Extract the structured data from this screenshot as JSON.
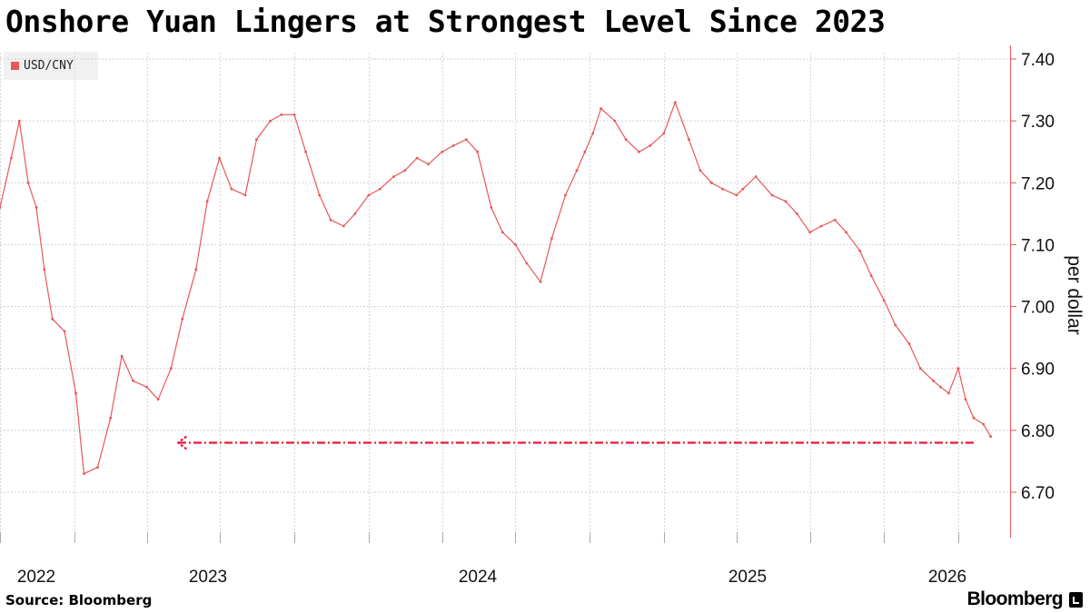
{
  "chart_data": {
    "type": "line",
    "title": "Onshore Yuan Lingers at Strongest Level Since 2023",
    "ylabel": "per dollar",
    "y_ticks": [
      "7.40",
      "7.30",
      "7.20",
      "7.10",
      "7.00",
      "6.90",
      "6.80",
      "6.70"
    ],
    "ylim": [
      6.62,
      7.42
    ],
    "x_tick_labels": [
      "2022",
      "2023",
      "2024",
      "2025",
      "2026"
    ],
    "legend_position": "top-left",
    "grid": true,
    "series": [
      {
        "name": "USD/CNY",
        "color": "#e8575a",
        "x": [
          "2022-10-01",
          "2022-10-15",
          "2022-10-25",
          "2022-11-05",
          "2022-11-15",
          "2022-11-25",
          "2022-12-05",
          "2022-12-20",
          "2023-01-03",
          "2023-01-13",
          "2023-01-30",
          "2023-02-15",
          "2023-03-01",
          "2023-03-15",
          "2023-04-01",
          "2023-04-15",
          "2023-05-01",
          "2023-05-15",
          "2023-06-01",
          "2023-06-15",
          "2023-06-30",
          "2023-07-15",
          "2023-08-01",
          "2023-08-15",
          "2023-09-01",
          "2023-09-15",
          "2023-10-01",
          "2023-10-15",
          "2023-11-01",
          "2023-11-15",
          "2023-12-01",
          "2023-12-15",
          "2024-01-01",
          "2024-01-15",
          "2024-02-01",
          "2024-02-15",
          "2024-03-01",
          "2024-03-15",
          "2024-04-01",
          "2024-04-15",
          "2024-05-01",
          "2024-05-15",
          "2024-06-01",
          "2024-06-15",
          "2024-07-01",
          "2024-07-15",
          "2024-08-01",
          "2024-08-15",
          "2024-09-01",
          "2024-09-15",
          "2024-09-25",
          "2024-10-05",
          "2024-10-15",
          "2024-11-01",
          "2024-11-15",
          "2024-12-01",
          "2024-12-15",
          "2025-01-01",
          "2025-01-15",
          "2025-02-01",
          "2025-02-15",
          "2025-03-01",
          "2025-03-15",
          "2025-04-01",
          "2025-04-09",
          "2025-04-25",
          "2025-05-15",
          "2025-06-01",
          "2025-06-15",
          "2025-07-01",
          "2025-07-15",
          "2025-08-01",
          "2025-08-15",
          "2025-09-01",
          "2025-09-15",
          "2025-10-01",
          "2025-10-15",
          "2025-11-01",
          "2025-11-15",
          "2025-12-01",
          "2025-12-10",
          "2025-12-20",
          "2026-01-01",
          "2026-01-10",
          "2026-01-20",
          "2026-02-01",
          "2026-02-10"
        ],
        "values": [
          7.16,
          7.24,
          7.3,
          7.2,
          7.16,
          7.06,
          6.98,
          6.96,
          6.86,
          6.73,
          6.74,
          6.82,
          6.92,
          6.88,
          6.87,
          6.85,
          6.9,
          6.98,
          7.06,
          7.17,
          7.24,
          7.19,
          7.18,
          7.27,
          7.3,
          7.31,
          7.31,
          7.25,
          7.18,
          7.14,
          7.13,
          7.15,
          7.18,
          7.19,
          7.21,
          7.22,
          7.24,
          7.23,
          7.25,
          7.26,
          7.27,
          7.25,
          7.16,
          7.12,
          7.1,
          7.07,
          7.04,
          7.11,
          7.18,
          7.22,
          7.25,
          7.28,
          7.32,
          7.3,
          7.27,
          7.25,
          7.26,
          7.28,
          7.33,
          7.27,
          7.22,
          7.2,
          7.19,
          7.18,
          7.19,
          7.21,
          7.18,
          7.17,
          7.15,
          7.12,
          7.13,
          7.14,
          7.12,
          7.09,
          7.05,
          7.01,
          6.97,
          6.94,
          6.9,
          6.88,
          6.87,
          6.86,
          6.9,
          6.85,
          6.82,
          6.81,
          6.79
        ]
      }
    ],
    "annotation": {
      "type": "dashed-arrow",
      "color": "#e8173c",
      "y": 6.78,
      "x_from": "2026-01-20",
      "x_to": "2023-05-10"
    }
  },
  "footer": {
    "source": "Source: Bloomberg",
    "brand": "Bloomberg"
  }
}
